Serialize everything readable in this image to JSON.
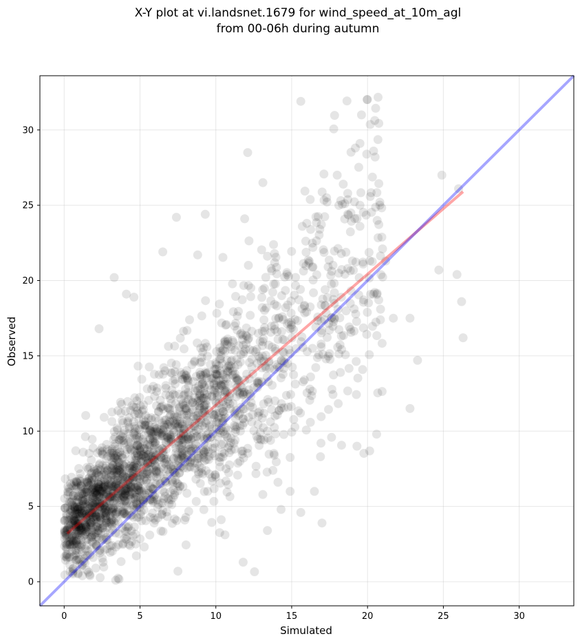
{
  "chart_data": {
    "type": "scatter",
    "title": "X-Y plot at vi.landsnet.1679 for wind_speed_at_10m_agl",
    "subtitle": "from 00-06h during autumn",
    "xlabel": "Simulated",
    "ylabel": "Observed",
    "xlim": [
      -1.6,
      33.6
    ],
    "ylim": [
      -1.6,
      33.6
    ],
    "xticks": [
      0,
      5,
      10,
      15,
      20,
      25,
      30
    ],
    "yticks": [
      0,
      5,
      10,
      15,
      20,
      25,
      30
    ],
    "grid": true,
    "point_color": "#000000",
    "point_alpha": 0.1,
    "point_count_approx": 2300,
    "representative_points": [
      [
        15.6,
        31.9
      ],
      [
        19.6,
        31.0
      ],
      [
        19.5,
        29.1
      ],
      [
        19.2,
        28.8
      ],
      [
        20.4,
        28.6
      ],
      [
        20.5,
        28.2
      ],
      [
        12.1,
        28.5
      ],
      [
        18.0,
        27.0
      ],
      [
        18.4,
        26.4
      ],
      [
        13.1,
        26.5
      ],
      [
        24.9,
        27.0
      ],
      [
        26.0,
        26.1
      ],
      [
        17.3,
        25.5
      ],
      [
        19.5,
        25.0
      ],
      [
        7.4,
        24.2
      ],
      [
        9.3,
        24.4
      ],
      [
        11.9,
        24.1
      ],
      [
        15.7,
        23.6
      ],
      [
        19.5,
        23.6
      ],
      [
        16.4,
        22.2
      ],
      [
        6.5,
        21.9
      ],
      [
        8.8,
        21.7
      ],
      [
        18.7,
        20.8
      ],
      [
        21.2,
        21.3
      ],
      [
        24.7,
        20.7
      ],
      [
        25.9,
        20.4
      ],
      [
        26.2,
        18.6
      ],
      [
        26.3,
        16.2
      ],
      [
        22.8,
        17.5
      ],
      [
        21.7,
        17.5
      ],
      [
        23.3,
        14.7
      ],
      [
        22.8,
        11.5
      ],
      [
        20.6,
        9.8
      ],
      [
        19.3,
        9.0
      ],
      [
        16.9,
        8.3
      ],
      [
        17.0,
        3.9
      ],
      [
        15.6,
        4.6
      ],
      [
        14.9,
        6.0
      ],
      [
        16.5,
        6.0
      ],
      [
        13.4,
        3.4
      ],
      [
        14.3,
        4.8
      ],
      [
        11.8,
        1.3
      ],
      [
        7.5,
        0.7
      ],
      [
        3.4,
        0.1
      ],
      [
        3.3,
        20.2
      ],
      [
        4.1,
        19.1
      ],
      [
        4.6,
        18.9
      ],
      [
        2.3,
        16.8
      ],
      [
        0.7,
        4.9
      ],
      [
        0.4,
        4.4
      ],
      [
        0.2,
        1.8
      ],
      [
        1.2,
        0.4
      ],
      [
        2.3,
        2.9
      ],
      [
        2.8,
        4.1
      ],
      [
        5.1,
        8.2
      ],
      [
        6.6,
        10.4
      ],
      [
        8.2,
        12.1
      ],
      [
        10.3,
        14.0
      ],
      [
        12.8,
        16.5
      ],
      [
        14.6,
        18.2
      ]
    ],
    "series": [
      {
        "type": "scatter_cloud"
      },
      {
        "type": "line",
        "color": "#ff0000",
        "alpha": 0.35,
        "x": [
          0.2,
          26.3
        ],
        "y": [
          3.2,
          25.9
        ]
      },
      {
        "type": "line",
        "color": "#0000ff",
        "alpha": 0.35,
        "x": [
          -1.6,
          33.6
        ],
        "y": [
          -1.6,
          33.6
        ]
      }
    ]
  }
}
